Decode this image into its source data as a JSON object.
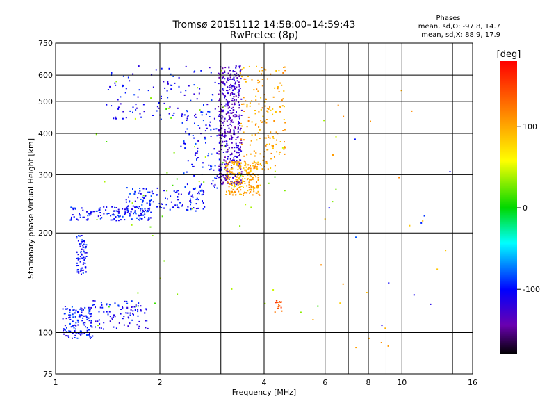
{
  "chart_data": {
    "type": "scatter",
    "title": "Tromsø 20151112 14:58:00–14:59:43",
    "subtitle": "RwPretec (8p)",
    "xlabel": "Frequency [MHz]",
    "ylabel": "Stationary phase Virtual Height [km]",
    "x_scale": "log",
    "y_scale": "log",
    "xlim": [
      1,
      16
    ],
    "ylim": [
      75,
      750
    ],
    "x_ticks": [
      1,
      2,
      4,
      6,
      8,
      10,
      16
    ],
    "x_tick_labels": [
      "1",
      "2",
      "4",
      "6",
      "8",
      "10",
      "16"
    ],
    "x_grid": [
      2,
      3,
      4,
      6,
      7,
      8,
      9,
      10,
      14
    ],
    "y_ticks": [
      75,
      100,
      200,
      300,
      400,
      500,
      600,
      750
    ],
    "y_tick_labels": [
      "75",
      "100",
      "200",
      "300",
      "400",
      "500",
      "600",
      "750"
    ],
    "y_grid": [
      100,
      200,
      300,
      400,
      500,
      600
    ],
    "grid": true,
    "phases_info": {
      "title": "Phases",
      "line_o": "mean, sd,O: -97.8, 14.7",
      "line_x": "mean, sd,X:  88.9, 17.9"
    },
    "colorbar": {
      "label": "[deg]",
      "range": [
        -180,
        180
      ],
      "ticks": [
        100,
        0,
        -100
      ],
      "tick_labels": [
        "100",
        "0",
        "-100"
      ],
      "colormap": "rainbow"
    },
    "series": [
      {
        "phase": -100,
        "x_range": [
          1.05,
          1.28
        ],
        "y_range": [
          96,
          120
        ],
        "n": 130
      },
      {
        "phase": -105,
        "x_range": [
          1.28,
          1.85
        ],
        "y_range": [
          102,
          125
        ],
        "n": 90
      },
      {
        "phase": -100,
        "x_range": [
          1.15,
          1.23
        ],
        "y_range": [
          150,
          198
        ],
        "n": 70
      },
      {
        "phase": -100,
        "x_range": [
          1.1,
          1.9
        ],
        "y_range": [
          218,
          240
        ],
        "n": 140
      },
      {
        "phase": -100,
        "x_range": [
          1.6,
          2.7
        ],
        "y_range": [
          232,
          275
        ],
        "n": 130
      },
      {
        "phase": -100,
        "x_range": [
          2.3,
          3.0
        ],
        "y_range": [
          270,
          470
        ],
        "n": 90
      },
      {
        "phase": -105,
        "x_range": [
          1.4,
          2.9
        ],
        "y_range": [
          440,
          640
        ],
        "n": 110
      },
      {
        "phase": -130,
        "x_range": [
          2.95,
          3.45
        ],
        "y_range": [
          280,
          640
        ],
        "n": 420
      },
      {
        "phase": 100,
        "x_range": [
          3.1,
          3.9
        ],
        "y_range": [
          260,
          330
        ],
        "n": 220
      },
      {
        "phase": 100,
        "x_range": [
          3.4,
          4.6
        ],
        "y_range": [
          310,
          640
        ],
        "n": 180
      },
      {
        "phase": 30,
        "x_range": [
          1.3,
          6.5
        ],
        "y_range": [
          100,
          640
        ],
        "n": 60
      },
      {
        "phase": 140,
        "x_range": [
          4.3,
          4.5
        ],
        "y_range": [
          115,
          125
        ],
        "n": 14
      },
      {
        "phase": 100,
        "x_range": [
          5.5,
          14
        ],
        "y_range": [
          85,
          600
        ],
        "n": 22
      },
      {
        "phase": -100,
        "x_range": [
          5.5,
          14
        ],
        "y_range": [
          100,
          420
        ],
        "n": 10
      }
    ]
  }
}
